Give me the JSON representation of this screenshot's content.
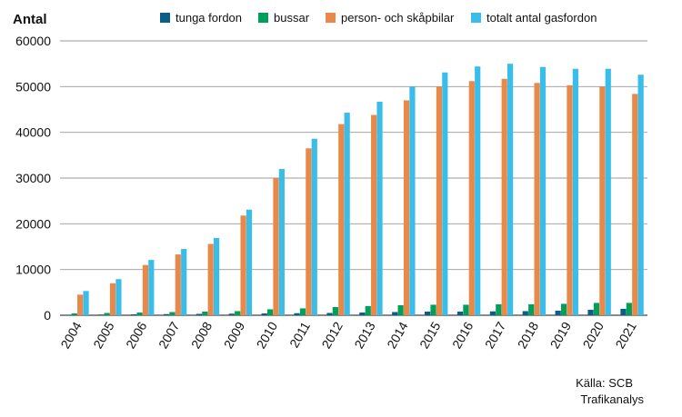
{
  "chart_data": {
    "type": "bar",
    "ylabel": "Antal",
    "ylim": [
      0,
      60000
    ],
    "yticks": [
      0,
      10000,
      20000,
      30000,
      40000,
      50000,
      60000
    ],
    "ytick_labels": [
      "0",
      "10000",
      "20000",
      "30000",
      "40000",
      "50000",
      "60000"
    ],
    "grid": true,
    "legend_position": "top",
    "categories": [
      "2004",
      "2005",
      "2006",
      "2007",
      "2008",
      "2009",
      "2010",
      "2011",
      "2012",
      "2013",
      "2014",
      "2015",
      "2016",
      "2017",
      "2018",
      "2019",
      "2020",
      "2021"
    ],
    "series": [
      {
        "name": "tunga fordon",
        "color": "#0b5e8a",
        "values": [
          100,
          150,
          200,
          250,
          300,
          350,
          400,
          450,
          500,
          600,
          700,
          800,
          800,
          850,
          900,
          1000,
          1200,
          1400
        ]
      },
      {
        "name": "bussar",
        "color": "#00a05a",
        "values": [
          400,
          500,
          600,
          700,
          800,
          900,
          1300,
          1500,
          1800,
          2000,
          2200,
          2300,
          2300,
          2400,
          2400,
          2500,
          2700,
          2700
        ]
      },
      {
        "name": "person- och skåpbilar",
        "color": "#e8894a",
        "values": [
          4500,
          7000,
          11000,
          13300,
          15600,
          21800,
          30000,
          36500,
          41800,
          43800,
          47000,
          50000,
          51200,
          51700,
          50800,
          50300,
          50000,
          48400
        ]
      },
      {
        "name": "totalt antal gasfordon",
        "color": "#3bbde9",
        "values": [
          5300,
          7900,
          12100,
          14500,
          16900,
          23100,
          32000,
          38600,
          44300,
          46700,
          50000,
          53100,
          54400,
          55000,
          54300,
          53900,
          53900,
          52600
        ]
      }
    ],
    "source_lines": [
      "Källa: SCB",
      "Trafikanalys"
    ]
  }
}
